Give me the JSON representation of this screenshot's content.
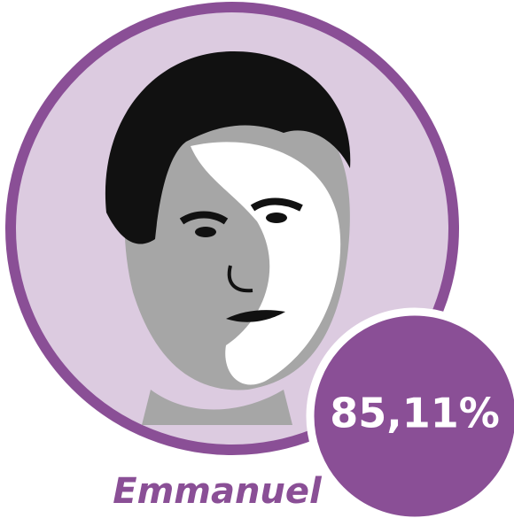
{
  "candidate": {
    "name": "Emmanuel",
    "score": "85,11%"
  }
}
